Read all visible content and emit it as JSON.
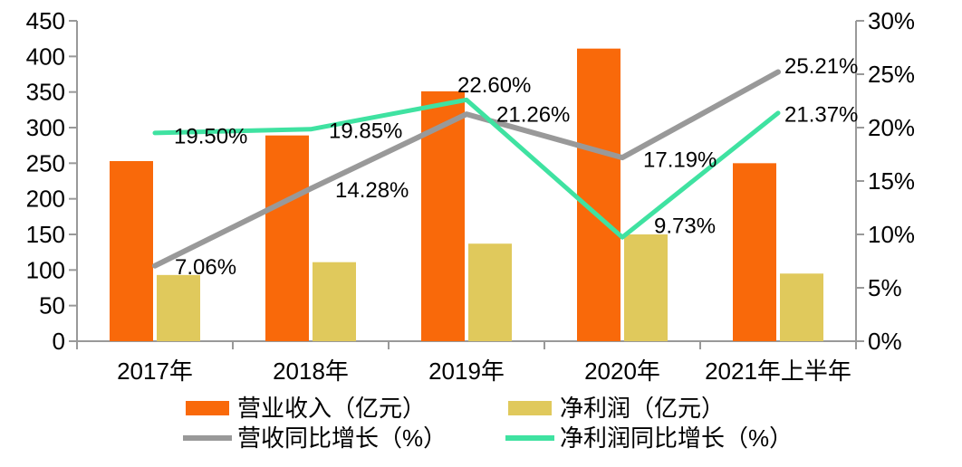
{
  "chart_data": {
    "type": "combo-bar-line",
    "title": "",
    "categories": [
      "2017年",
      "2018年",
      "2019年",
      "2020年",
      "2021年上半年"
    ],
    "series": [
      {
        "name": "营业收入（亿元）",
        "type": "bar",
        "axis": "left",
        "color": "#F9690A",
        "values": [
          253,
          289,
          351,
          411,
          250
        ]
      },
      {
        "name": "净利润（亿元）",
        "type": "bar",
        "axis": "left",
        "color": "#E0C95C",
        "values": [
          93,
          111,
          137,
          150,
          95
        ]
      },
      {
        "name": "营收同比增长（%）",
        "type": "line",
        "axis": "right",
        "color": "#999999",
        "stroke_width": 6,
        "values": [
          7.06,
          14.28,
          21.26,
          17.19,
          25.21
        ],
        "point_labels": [
          "7.06%",
          "14.28%",
          "21.26%",
          "17.19%",
          "25.21%"
        ],
        "label_dx": [
          22,
          27,
          33,
          23,
          7
        ],
        "label_dy": [
          2,
          2,
          1,
          3,
          -6
        ]
      },
      {
        "name": "净利润同比增长（%）",
        "type": "line",
        "axis": "right",
        "color": "#3FE2A1",
        "stroke_width": 5,
        "values": [
          19.5,
          19.85,
          22.6,
          9.73,
          21.37
        ],
        "point_labels": [
          "19.50%",
          "19.85%",
          "22.60%",
          "9.73%",
          "21.37%"
        ],
        "label_dx": [
          21,
          20,
          -10,
          35,
          7
        ],
        "label_dy": [
          4,
          2,
          -16,
          -12,
          2
        ]
      }
    ],
    "left_axis": {
      "min": 0,
      "max": 450,
      "step": 50,
      "tick_labels": [
        "0",
        "50",
        "100",
        "150",
        "200",
        "250",
        "300",
        "350",
        "400",
        "450"
      ]
    },
    "right_axis": {
      "min": 0,
      "max": 30,
      "step": 5,
      "tick_labels": [
        "0%",
        "5%",
        "10%",
        "15%",
        "20%",
        "25%",
        "30%"
      ]
    },
    "grid": false,
    "legend_position": "bottom",
    "legend": [
      {
        "label": "营业收入（亿元）",
        "swatch": "rect",
        "color": "#F9690A"
      },
      {
        "label": "净利润（亿元）",
        "swatch": "rect",
        "color": "#E0C95C"
      },
      {
        "label": "营收同比增长（%）",
        "swatch": "line",
        "color": "#999999"
      },
      {
        "label": "净利润同比增长（%）",
        "swatch": "line",
        "color": "#3FE2A1"
      }
    ]
  },
  "colors": {
    "axis": "#999999",
    "text": "#000000",
    "background": "#FFFFFF"
  }
}
